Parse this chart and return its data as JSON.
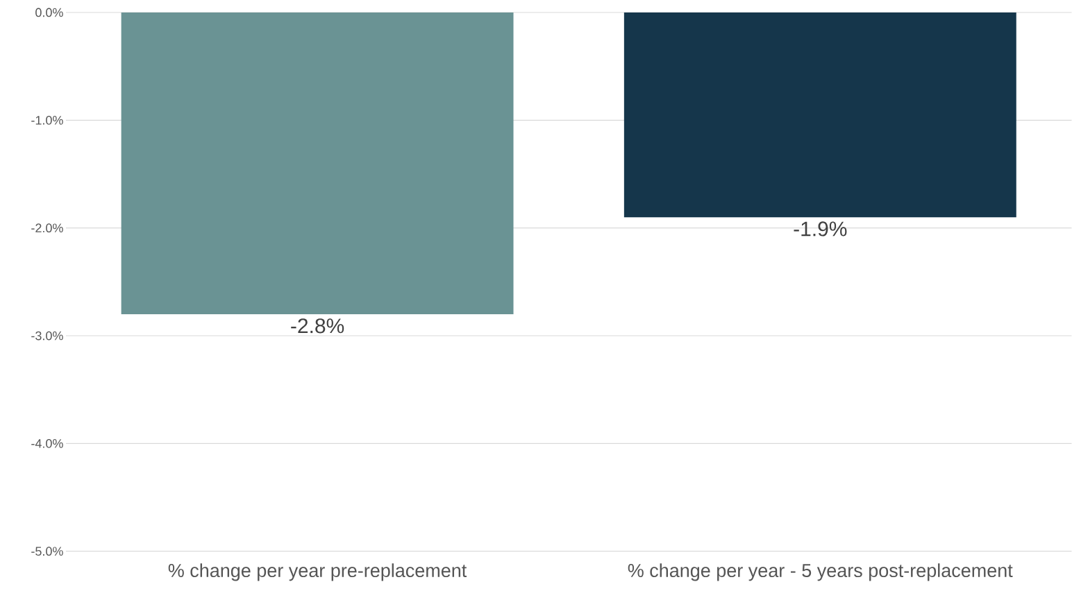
{
  "chart_data": {
    "type": "bar",
    "categories": [
      "% change per year pre-replacement",
      "% change per year - 5 years post-replacement"
    ],
    "values": [
      -2.8,
      -1.9
    ],
    "colors": [
      "#6a9394",
      "#15364b"
    ],
    "value_labels": [
      "-2.8%",
      "-1.9%"
    ],
    "ylim": [
      -5,
      0
    ],
    "yticks": [
      {
        "value": -5,
        "label": "-5.0%"
      },
      {
        "value": -4,
        "label": "-4.0%"
      },
      {
        "value": -3,
        "label": "-3.0%"
      },
      {
        "value": -2,
        "label": "-2.0%"
      },
      {
        "value": -1,
        "label": "-1.0%"
      },
      {
        "value": 0,
        "label": "0.0%"
      }
    ],
    "grid": "y"
  }
}
